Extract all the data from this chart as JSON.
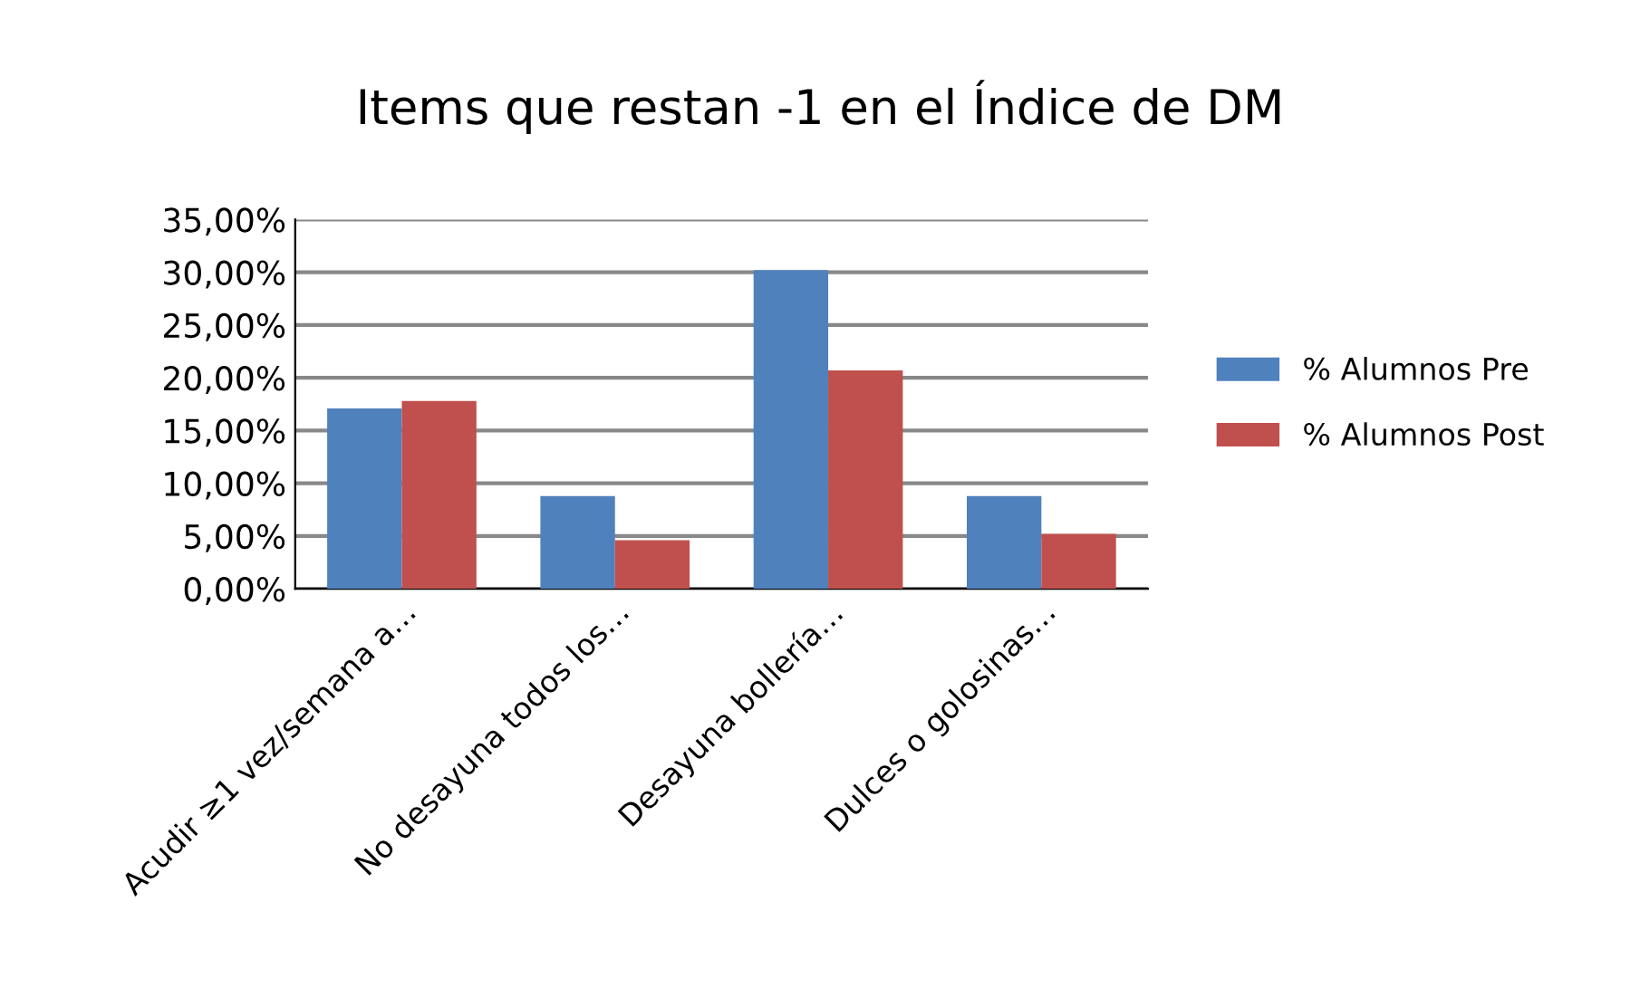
{
  "chart_data": {
    "type": "bar",
    "title": "Items que restan -1 en el Índice de DM",
    "categories": [
      "Acudir ≥1 vez/semana a…",
      "No desayuna todos los…",
      "Desayuna bollería…",
      "Dulces o golosinas…"
    ],
    "series": [
      {
        "name": "% Alumnos Pre",
        "color": "#4f81bd",
        "values": [
          17.1,
          8.8,
          30.2,
          8.8
        ]
      },
      {
        "name": "% Alumnos Post",
        "color": "#c0504d",
        "values": [
          17.8,
          4.6,
          20.7,
          5.2
        ]
      }
    ],
    "ylim": [
      0,
      35
    ],
    "yticks": [
      {
        "value": 0,
        "label": "0,00%"
      },
      {
        "value": 5,
        "label": "5,00%"
      },
      {
        "value": 10,
        "label": "10,00%"
      },
      {
        "value": 15,
        "label": "15,00%"
      },
      {
        "value": 20,
        "label": "20,00%"
      },
      {
        "value": 25,
        "label": "25,00%"
      },
      {
        "value": 30,
        "label": "30,00%"
      },
      {
        "value": 35,
        "label": "35,00%"
      }
    ],
    "grid": "y",
    "legend": "right"
  }
}
